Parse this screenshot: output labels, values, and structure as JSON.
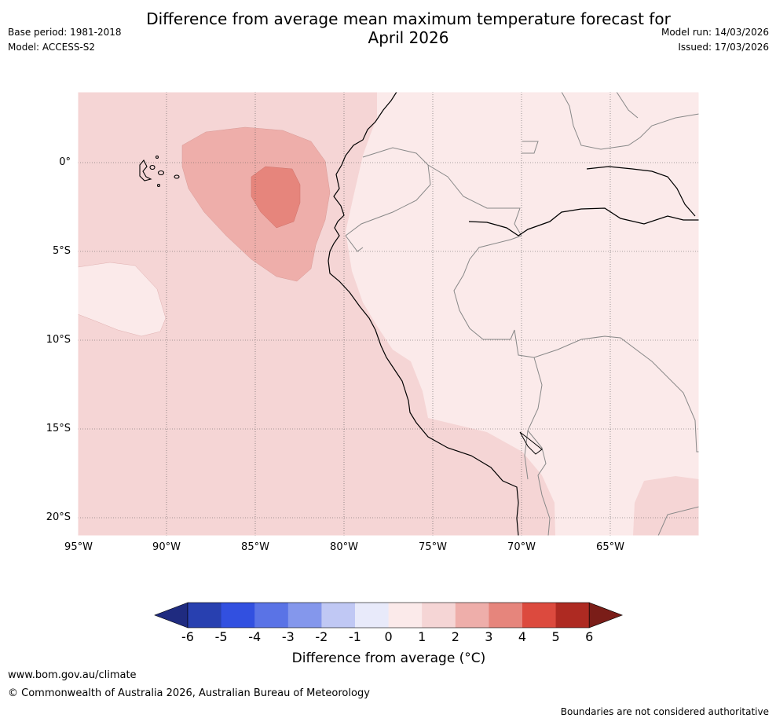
{
  "title_line1": "Difference from average mean maximum temperature forecast for",
  "title_line2": "April 2026",
  "base_period": "Base period: 1981-2018",
  "model": "Model: ACCESS-S2",
  "model_run": "Model run: 14/03/2026",
  "issued": "Issued: 17/03/2026",
  "lat_labels": [
    "0°",
    "5°S",
    "10°S",
    "15°S",
    "20°S"
  ],
  "lon_labels": [
    "95°W",
    "90°W",
    "85°W",
    "80°W",
    "75°W",
    "70°W",
    "65°W"
  ],
  "colorbar": {
    "ticks": [
      "-6",
      "-5",
      "-4",
      "-3",
      "-2",
      "-1",
      "0",
      "1",
      "2",
      "3",
      "4",
      "5",
      "6"
    ],
    "colors": [
      "#1f2b80",
      "#2840b0",
      "#3250e0",
      "#5a73e6",
      "#8497ec",
      "#c0c8f4",
      "#e8eafa",
      "#fbeaea",
      "#f5d5d5",
      "#eeaeaa",
      "#e6857c",
      "#dc4a3e",
      "#ae2a22",
      "#7a1d18"
    ],
    "label": "Difference from average ($^\\circ$C)",
    "label_display": "Difference from average (°C)"
  },
  "footer": {
    "url": "www.bom.gov.au/climate",
    "copyright": "© Commonwealth of Australia 2026, Australian Bureau of Meteorology",
    "disclaimer": "Boundaries are not considered authoritative"
  }
}
